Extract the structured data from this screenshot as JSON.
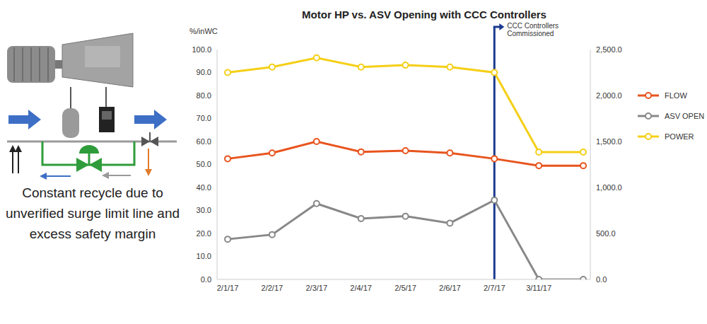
{
  "caption": "Constant recycle due to unverified surge limit line and excess safety margin",
  "chart_data": {
    "type": "line",
    "title": "Motor HP vs. ASV Opening with CCC Controllers",
    "ylabel": "%/inWC",
    "categories": [
      "2/1/17",
      "2/2/17",
      "2/3/17",
      "2/4/17",
      "2/5/17",
      "2/6/17",
      "2/7/17",
      "3/11/17",
      null
    ],
    "series": [
      {
        "name": "FLOW",
        "color": "#E8541E",
        "marker": "circle",
        "values": [
          52.5,
          55,
          60,
          55.5,
          56,
          55,
          52.5,
          49.5,
          49.5
        ]
      },
      {
        "name": "ASV OPEN",
        "color": "#888888",
        "marker": "circle",
        "values": [
          17.5,
          19.5,
          33,
          26.5,
          27.5,
          24.5,
          34.5,
          0,
          0
        ]
      },
      {
        "name": "POWER",
        "color": "#F5CF16",
        "marker": "circle",
        "axis": "y2",
        "values": [
          2250,
          2310,
          2410,
          2310,
          2330,
          2310,
          2250,
          1385,
          1385
        ]
      }
    ],
    "ylim": [
      0,
      100
    ],
    "yticks": [
      {
        "value": 0,
        "label": "0.0"
      },
      {
        "value": 10,
        "label": "10.0"
      },
      {
        "value": 20,
        "label": "20.0"
      },
      {
        "value": 30,
        "label": "30.0"
      },
      {
        "value": 40,
        "label": "40.0"
      },
      {
        "value": 50,
        "label": "50.0"
      },
      {
        "value": 60,
        "label": "60.0"
      },
      {
        "value": 70,
        "label": "70.0"
      },
      {
        "value": 80,
        "label": "80.0"
      },
      {
        "value": 90,
        "label": "90.0"
      },
      {
        "value": 100,
        "label": "100.0"
      }
    ],
    "y2lim": [
      0,
      2500
    ],
    "y2ticks": [
      {
        "value": 0,
        "label": "0.0"
      },
      {
        "value": 500,
        "label": "500.0"
      },
      {
        "value": 1000,
        "label": "1,000.0"
      },
      {
        "value": 1500,
        "label": "1,500.0"
      },
      {
        "value": 2000,
        "label": "2,000.0"
      },
      {
        "value": 2500,
        "label": "2,500.0"
      }
    ],
    "annotations": [
      {
        "text": "CCC Controllers Commissioned",
        "x": "2/7/17"
      }
    ],
    "legend": "right",
    "grid": false
  }
}
